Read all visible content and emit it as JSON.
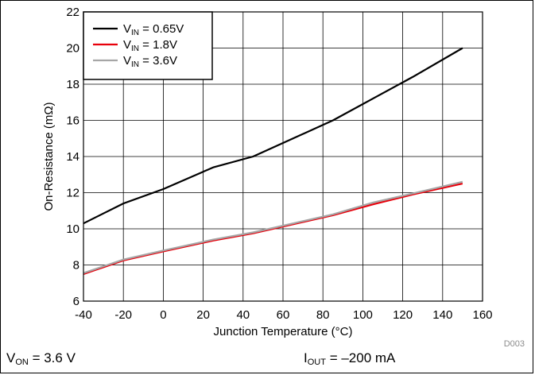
{
  "chart_data": {
    "type": "line",
    "title": "",
    "xlabel": "Junction Temperature (°C)",
    "ylabel": "On-Resistance (mΩ)",
    "xlim": [
      -40,
      160
    ],
    "ylim": [
      6,
      22
    ],
    "xticks": [
      -40,
      -20,
      0,
      20,
      40,
      60,
      80,
      100,
      120,
      140,
      160
    ],
    "yticks": [
      6,
      8,
      10,
      12,
      14,
      16,
      18,
      20,
      22
    ],
    "grid": true,
    "legend_position": "top-left",
    "series": [
      {
        "name_main": "V",
        "name_sub": "IN",
        "name_rest": " = 0.65V",
        "color": "#000000",
        "x": [
          -40,
          -20,
          0,
          25,
          45,
          65,
          85,
          105,
          125,
          150
        ],
        "y": [
          10.3,
          11.4,
          12.2,
          13.4,
          14.0,
          15.0,
          16.0,
          17.2,
          18.4,
          20.0
        ]
      },
      {
        "name_main": "V",
        "name_sub": "IN",
        "name_rest": " = 1.8V",
        "color": "#e8000b",
        "x": [
          -40,
          -20,
          0,
          25,
          45,
          65,
          85,
          105,
          125,
          150
        ],
        "y": [
          7.5,
          8.25,
          8.75,
          9.35,
          9.75,
          10.25,
          10.75,
          11.35,
          11.9,
          12.5
        ]
      },
      {
        "name_main": "V",
        "name_sub": "IN",
        "name_rest": " = 3.6V",
        "color": "#a6a6a6",
        "x": [
          -40,
          -20,
          0,
          25,
          45,
          65,
          85,
          105,
          125,
          150
        ],
        "y": [
          7.55,
          8.3,
          8.8,
          9.4,
          9.8,
          10.3,
          10.8,
          11.45,
          11.95,
          12.6
        ]
      }
    ],
    "annotation": "D003"
  },
  "footer": {
    "von_main": "V",
    "von_sub": "ON",
    "von_rest": " = 3.6 V",
    "iout_main": "I",
    "iout_sub": "OUT",
    "iout_rest": " = –200 mA"
  }
}
